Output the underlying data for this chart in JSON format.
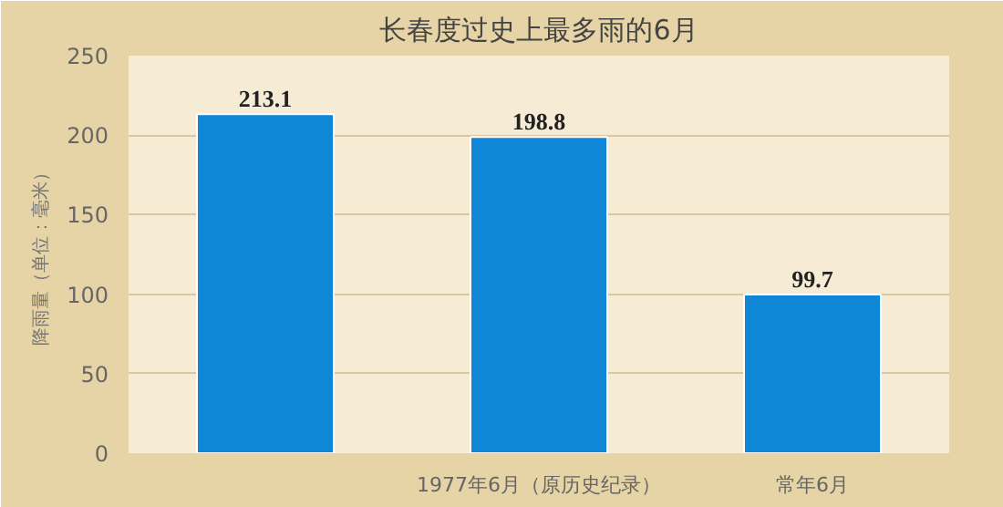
{
  "chart_data": {
    "type": "bar",
    "title": "长春度过史上最多雨的6月",
    "ylabel": "降雨量（单位：毫米）",
    "categories": [
      null,
      "1977年6月（原历史纪录）",
      "常年6月"
    ],
    "values": [
      213.1,
      198.8,
      99.7
    ],
    "color": "#0f86d6",
    "ylim": [
      0,
      250
    ],
    "yticks": [
      0,
      50,
      100,
      150,
      200,
      250
    ],
    "grid": "y",
    "data_labels": true
  }
}
